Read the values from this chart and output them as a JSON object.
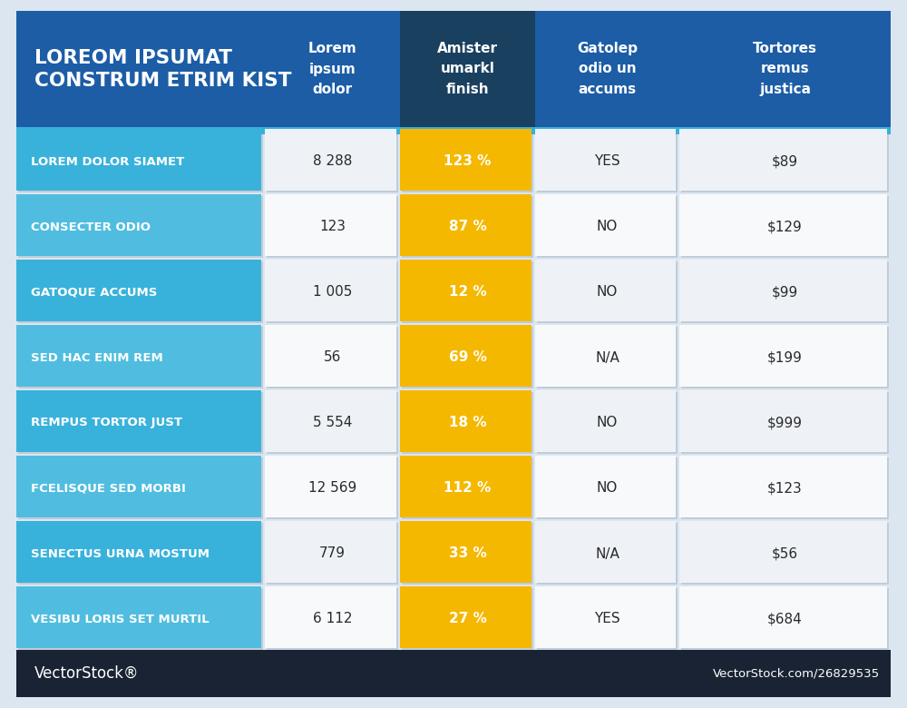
{
  "title_line1": "LOREOM IPSUMAT",
  "title_line2": "CONSTRUM ETRIM KIST",
  "col_headers": [
    "Lorem\nipsum\ndolor",
    "Amister\numarkl\nfinish",
    "Gatolep\nodio un\naccums",
    "Tortores\nremus\njustica"
  ],
  "row_labels": [
    "LOREM DOLOR SIAMET",
    "CONSECTER ODIO",
    "GATOQUE ACCUMS",
    "SED HAC ENIM REM",
    "REMPUS TORTOR JUST",
    "FCELISQUE SED MORBI",
    "SENECTUS URNA MOSTUM",
    "VESIBU LORIS SET MURTIL"
  ],
  "col1_values": [
    "8 288",
    "123",
    "1 005",
    "56",
    "5 554",
    "12 569",
    "779",
    "6 112"
  ],
  "col2_values": [
    "123 %",
    "87 %",
    "12 %",
    "69 %",
    "18 %",
    "112 %",
    "33 %",
    "27 %"
  ],
  "col3_values": [
    "YES",
    "NO",
    "NO",
    "N/A",
    "NO",
    "NO",
    "N/A",
    "YES"
  ],
  "col4_values": [
    "$89",
    "$129",
    "$99",
    "$199",
    "$999",
    "$123",
    "$56",
    "$684"
  ],
  "header_bg": "#1c5da6",
  "header_col2_bg": "#1a4060",
  "row_label_bg_odd": "#39b2db",
  "row_label_bg_even": "#50bde0",
  "col2_bg": "#f5b800",
  "cell_bg_light": "#eef2f7",
  "cell_bg_white": "#f8f9fb",
  "footer_bg": "#192333",
  "bg_color": "#dce6f0",
  "header_text_color": "#ffffff",
  "row_label_text_color": "#ffffff",
  "col2_text_color": "#ffffff",
  "cell_text_color": "#2a2a2a",
  "footer_text_color": "#ffffff",
  "vectorstock_left": "VectorStock®",
  "vectorstock_right": "VectorStock.com/26829535",
  "fig_width": 10.0,
  "fig_height": 7.8
}
